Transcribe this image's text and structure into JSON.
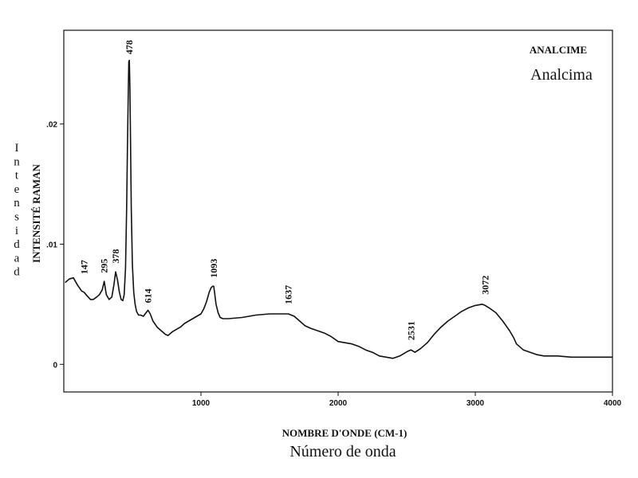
{
  "chart_data": {
    "type": "line",
    "title": "ANALCIME",
    "subtitle": "Analcima",
    "xlabel": "NOMBRE D'ONDE (CM-1)",
    "xlabel_secondary": "Número de onda",
    "ylabel": "INTENSITÉ RAMAN",
    "ylabel_secondary": "Intensidad",
    "xlim": [
      0,
      4000
    ],
    "ylim": [
      -0.0023,
      0.0278
    ],
    "xticks": [
      {
        "value": 1000,
        "label": "1000"
      },
      {
        "value": 2000,
        "label": "2000"
      },
      {
        "value": 3000,
        "label": "3000"
      },
      {
        "value": 4000,
        "label": "4000"
      }
    ],
    "yticks": [
      {
        "value": 0,
        "label": "0"
      },
      {
        "value": 0.01,
        "label": ".01"
      },
      {
        "value": 0.02,
        "label": ".02"
      }
    ],
    "grid": false,
    "series": [
      {
        "x": [
          10,
          40,
          70,
          100,
          130,
          147,
          170,
          195,
          215,
          240,
          260,
          280,
          295,
          310,
          330,
          350,
          365,
          378,
          392,
          405,
          418,
          430,
          440,
          450,
          458,
          464,
          470,
          474,
          478,
          482,
          486,
          492,
          500,
          510,
          520,
          530,
          545,
          560,
          580,
          600,
          614,
          630,
          650,
          680,
          710,
          740,
          760,
          790,
          820,
          850,
          880,
          910,
          940,
          970,
          1000,
          1020,
          1040,
          1060,
          1075,
          1085,
          1093,
          1100,
          1110,
          1125,
          1140,
          1160,
          1200,
          1300,
          1400,
          1500,
          1580,
          1637,
          1680,
          1720,
          1760,
          1800,
          1850,
          1900,
          1950,
          2000,
          2050,
          2100,
          2150,
          2200,
          2250,
          2300,
          2350,
          2400,
          2450,
          2480,
          2510,
          2531,
          2560,
          2600,
          2650,
          2700,
          2750,
          2800,
          2850,
          2900,
          2950,
          3000,
          3050,
          3072,
          3100,
          3150,
          3200,
          3250,
          3280,
          3300,
          3350,
          3400,
          3450,
          3500,
          3600,
          3700,
          3800,
          3900,
          4000
        ],
        "y": [
          0.0068,
          0.0071,
          0.0072,
          0.0066,
          0.0061,
          0.006,
          0.0057,
          0.0054,
          0.0054,
          0.0056,
          0.0058,
          0.0062,
          0.0069,
          0.0058,
          0.0054,
          0.0056,
          0.0066,
          0.0077,
          0.007,
          0.006,
          0.0054,
          0.0053,
          0.0058,
          0.008,
          0.013,
          0.018,
          0.0225,
          0.0252,
          0.0253,
          0.023,
          0.019,
          0.013,
          0.0083,
          0.006,
          0.005,
          0.0044,
          0.0041,
          0.0041,
          0.004,
          0.0043,
          0.0045,
          0.0042,
          0.0036,
          0.0031,
          0.0028,
          0.0025,
          0.0024,
          0.0027,
          0.0029,
          0.0031,
          0.0034,
          0.0036,
          0.0038,
          0.004,
          0.0042,
          0.0046,
          0.0052,
          0.006,
          0.0064,
          0.0065,
          0.0065,
          0.0059,
          0.005,
          0.0043,
          0.0039,
          0.0038,
          0.0038,
          0.0039,
          0.0041,
          0.0042,
          0.0042,
          0.0042,
          0.004,
          0.0036,
          0.0032,
          0.003,
          0.0028,
          0.0026,
          0.0023,
          0.0019,
          0.0018,
          0.0017,
          0.0015,
          0.0012,
          0.001,
          0.0007,
          0.0006,
          0.0005,
          0.0007,
          0.0009,
          0.0011,
          0.0012,
          0.001,
          0.0013,
          0.0018,
          0.0025,
          0.0031,
          0.0036,
          0.004,
          0.0044,
          0.0047,
          0.0049,
          0.005,
          0.0049,
          0.0047,
          0.0043,
          0.0036,
          0.0028,
          0.0022,
          0.0017,
          0.0012,
          0.001,
          0.0008,
          0.0007,
          0.0007,
          0.0006,
          0.0006,
          0.0006,
          0.0006
        ]
      }
    ],
    "annotations": [
      {
        "x": 147,
        "y": 0.0075,
        "text": "147"
      },
      {
        "x": 295,
        "y": 0.0076,
        "text": "295"
      },
      {
        "x": 378,
        "y": 0.0084,
        "text": "378"
      },
      {
        "x": 478,
        "y": 0.0258,
        "text": "478"
      },
      {
        "x": 614,
        "y": 0.0051,
        "text": "614"
      },
      {
        "x": 1093,
        "y": 0.0072,
        "text": "1093"
      },
      {
        "x": 1637,
        "y": 0.005,
        "text": "1637"
      },
      {
        "x": 2531,
        "y": 0.002,
        "text": "2531"
      },
      {
        "x": 3072,
        "y": 0.0058,
        "text": "3072"
      }
    ]
  }
}
